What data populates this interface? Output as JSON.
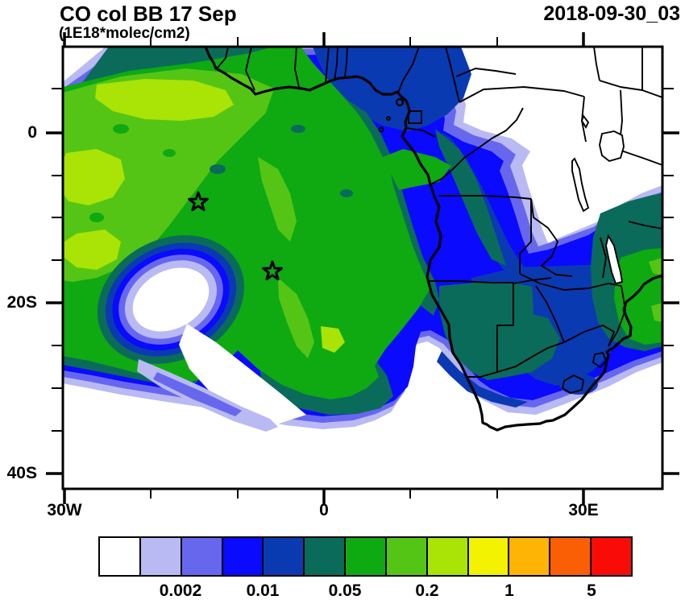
{
  "header": {
    "title": "CO col BB 17 Sep",
    "subtitle": "(1E18*molec/cm2)",
    "timestamp": "2018-09-30_03"
  },
  "axes": {
    "y_labels": [
      "0",
      "20S",
      "40S"
    ],
    "x_labels": [
      "30W",
      "0",
      "30E"
    ]
  },
  "colorbar": {
    "labels": [
      "0.002",
      "0.01",
      "0.05",
      "0.2",
      "1",
      "5"
    ],
    "colors": [
      "#ffffff",
      "#b9b9f4",
      "#6767ee",
      "#0a0aff",
      "#0a3ab2",
      "#0a6b5a",
      "#0fa912",
      "#55c515",
      "#aae306",
      "#f2f201",
      "#fdb404",
      "#fa5f05",
      "#f90b08"
    ]
  },
  "chart_data": {
    "type": "heatmap",
    "title": "CO col BB 17 Sep",
    "units": "1E18*molec/cm2",
    "valid_time": "2018-09-30_03",
    "projection": "cylindrical lat-lon, Africa / South Atlantic",
    "lon_range": [
      -30,
      39
    ],
    "lat_range": [
      -42,
      10
    ],
    "x_tick_labels": [
      "30W",
      "0",
      "30E"
    ],
    "y_tick_labels": [
      "0",
      "20S",
      "40S"
    ],
    "contour_levels": [
      0.001,
      0.002,
      0.005,
      0.01,
      0.02,
      0.05,
      0.1,
      0.2,
      0.5,
      1,
      2,
      5
    ],
    "labeled_levels": [
      0.002,
      0.01,
      0.05,
      0.2,
      1,
      5
    ],
    "palette": [
      "#ffffff",
      "#b9b9f4",
      "#6767ee",
      "#0a0aff",
      "#0a3ab2",
      "#0a6b5a",
      "#0fa912",
      "#55c515",
      "#aae306",
      "#f2f201",
      "#fdb404",
      "#fa5f05",
      "#f90b08"
    ],
    "legend_position": "bottom",
    "grid": false,
    "markers": [
      {
        "type": "star",
        "lon": -14.5,
        "lat": -8.2
      },
      {
        "type": "star",
        "lon": -6.0,
        "lat": -16.3
      }
    ],
    "field_summary": "Biomass-burning CO column plume (0.05-0.5) spans the South Atlantic from the west edge to Angola/Congo, highest (0.2-0.5) in the northwest; blue/lavender fringes (0.001-0.02) wrap the Gulf of Guinea, sweep southeast across Zambia/Zimbabwe/Mozambique and along the South African coast; white (<0.001) over East Africa, the far southern ocean and a clear eye near 14W,15S."
  }
}
